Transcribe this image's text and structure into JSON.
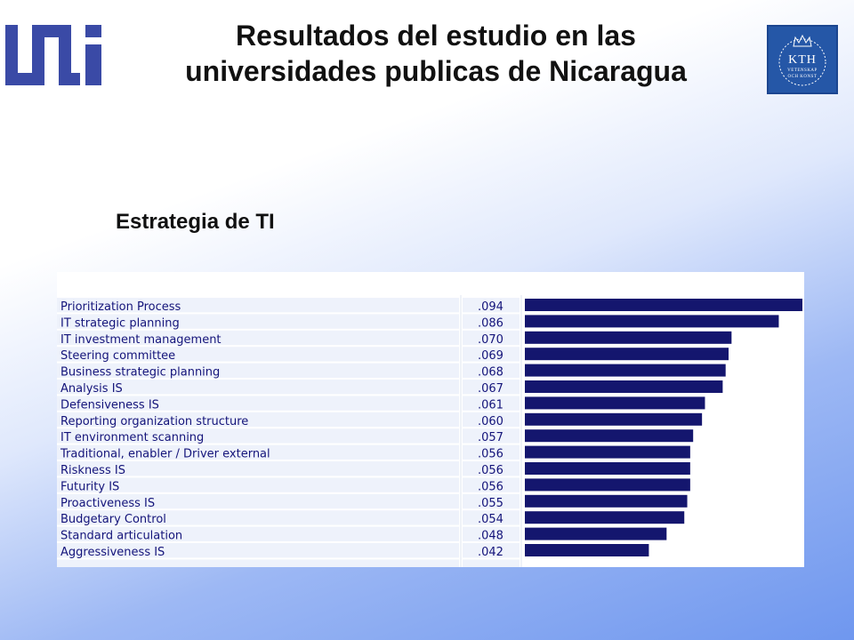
{
  "header": {
    "title_line1": "Resultados del estudio en las",
    "title_line2": "universidades publicas de Nicaragua",
    "logo_right": {
      "main": "KTH",
      "sub1": "VETENSKAP",
      "sub2": "OCH KONST"
    }
  },
  "section": {
    "subtitle": "Estrategia de TI"
  },
  "colors": {
    "bar": "#14166e",
    "label": "#14147a",
    "row_stripe": "#eef2fb",
    "logo_left": "#3a4aa6",
    "logo_right": "#2557a7"
  },
  "chart_data": {
    "type": "bar",
    "orientation": "horizontal",
    "categories": [
      "Prioritization Process",
      "IT strategic planning",
      "IT investment management",
      "Steering committee",
      "Business strategic planning",
      "Analysis IS",
      "Defensiveness IS",
      "Reporting organization structure",
      "IT environment scanning",
      "Traditional, enabler / Driver external",
      "Riskness IS",
      "Futurity IS",
      "Proactiveness IS",
      "Budgetary Control",
      "Standard articulation",
      "Aggressiveness IS"
    ],
    "value_labels": [
      ".094",
      ".086",
      ".070",
      ".069",
      ".068",
      ".067",
      ".061",
      ".060",
      ".057",
      ".056",
      ".056",
      ".056",
      ".055",
      ".054",
      ".048",
      ".042"
    ],
    "values": [
      0.094,
      0.086,
      0.07,
      0.069,
      0.068,
      0.067,
      0.061,
      0.06,
      0.057,
      0.056,
      0.056,
      0.056,
      0.055,
      0.054,
      0.048,
      0.042
    ],
    "xlim": [
      0,
      0.094
    ],
    "title": "",
    "xlabel": "",
    "ylabel": "",
    "grid": false,
    "legend": "none"
  }
}
